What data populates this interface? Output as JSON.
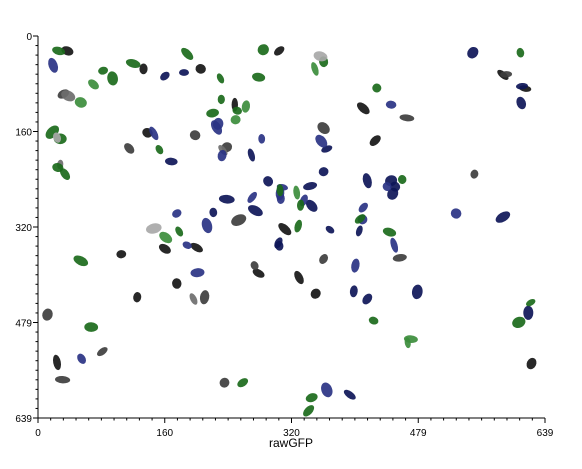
{
  "chart_data": {
    "type": "scatter",
    "title": "",
    "xlabel": "rawGFP",
    "ylabel": "",
    "xlim": [
      0,
      639
    ],
    "ylim": [
      0,
      639
    ],
    "y_inverted": true,
    "grid": false,
    "xticks": [
      "0",
      "160",
      "320",
      "479",
      "639"
    ],
    "yticks": [
      "0",
      "160",
      "320",
      "479",
      "639"
    ],
    "colors": {
      "black": "#161616",
      "darkgray": "#3e3e3e",
      "gray": "#6e6e6e",
      "navy": "#0e1658",
      "blue": "#2a3384",
      "green": "#1b6a1b",
      "lightgreen": "#3c8d3c",
      "silver": "#a8a8a8"
    },
    "series": [
      {
        "color": "black",
        "points": [
          [
            37,
            25
          ],
          [
            133,
            55
          ],
          [
            205,
            55
          ],
          [
            304,
            25
          ],
          [
            248,
            115
          ],
          [
            138,
            162
          ],
          [
            160,
            356
          ],
          [
            175,
            414
          ],
          [
            105,
            365
          ],
          [
            125,
            437
          ],
          [
            200,
            354
          ],
          [
            311,
            323
          ],
          [
            278,
            397
          ],
          [
            329,
            404
          ],
          [
            350,
            431
          ],
          [
            410,
            121
          ],
          [
            425,
            175
          ],
          [
            586,
            65
          ],
          [
            614,
            88
          ],
          [
            622,
            548
          ],
          [
            24,
            546
          ]
        ]
      },
      {
        "color": "darkgray",
        "points": [
          [
            32,
            97
          ],
          [
            115,
            188
          ],
          [
            198,
            166
          ],
          [
            238,
            186
          ],
          [
            253,
            308
          ],
          [
            210,
            437
          ],
          [
            273,
            384
          ],
          [
            360,
            373
          ],
          [
            456,
            371
          ],
          [
            550,
            231
          ],
          [
            590,
            64
          ],
          [
            12,
            466
          ],
          [
            81,
            528
          ],
          [
            31,
            575
          ],
          [
            235,
            580
          ],
          [
            360,
            154
          ],
          [
            465,
            137
          ]
        ]
      },
      {
        "color": "gray",
        "points": [
          [
            28,
            215
          ],
          [
            38,
            100
          ],
          [
            233,
            191
          ],
          [
            196,
            440
          ]
        ]
      },
      {
        "color": "navy",
        "points": [
          [
            160,
            67
          ],
          [
            184,
            61
          ],
          [
            269,
            199
          ],
          [
            304,
            351
          ],
          [
            360,
            227
          ],
          [
            343,
            251
          ],
          [
            345,
            284
          ],
          [
            364,
            189
          ],
          [
            368,
            324
          ],
          [
            405,
            326
          ],
          [
            398,
            427
          ],
          [
            415,
            242
          ],
          [
            450,
            252
          ],
          [
            447,
            264
          ],
          [
            445,
            242
          ],
          [
            415,
            440
          ],
          [
            478,
            428
          ],
          [
            586,
            303
          ],
          [
            610,
            84
          ],
          [
            609,
            112
          ],
          [
            618,
            463
          ],
          [
            548,
            28
          ],
          [
            221,
            295
          ],
          [
            274,
            292
          ],
          [
            393,
            600
          ],
          [
            168,
            210
          ],
          [
            238,
            273
          ],
          [
            303,
            346
          ],
          [
            290,
            243
          ]
        ]
      },
      {
        "color": "blue",
        "points": [
          [
            19,
            49
          ],
          [
            146,
            163
          ],
          [
            227,
            147
          ],
          [
            282,
            172
          ],
          [
            306,
            272
          ],
          [
            308,
            253
          ],
          [
            400,
            384
          ],
          [
            449,
            350
          ],
          [
            445,
            115
          ],
          [
            409,
            307
          ],
          [
            440,
            252
          ],
          [
            410,
            287
          ],
          [
            335,
            275
          ],
          [
            364,
            592
          ],
          [
            213,
            317
          ],
          [
            188,
            350
          ],
          [
            201,
            396
          ],
          [
            55,
            540
          ],
          [
            527,
            297
          ],
          [
            357,
            176
          ],
          [
            270,
            270
          ],
          [
            225,
            153
          ],
          [
            232,
            200
          ],
          [
            175,
            297
          ],
          [
            305,
            263
          ]
        ]
      },
      {
        "color": "green",
        "points": [
          [
            26,
            25
          ],
          [
            82,
            58
          ],
          [
            94,
            71
          ],
          [
            120,
            46
          ],
          [
            188,
            30
          ],
          [
            230,
            71
          ],
          [
            284,
            23
          ],
          [
            278,
            69
          ],
          [
            305,
            258
          ],
          [
            331,
            283
          ],
          [
            328,
            318
          ],
          [
            443,
            328
          ],
          [
            459,
            240
          ],
          [
            427,
            87
          ],
          [
            608,
            28
          ],
          [
            606,
            479
          ],
          [
            621,
            446
          ],
          [
            18,
            161
          ],
          [
            28,
            172
          ],
          [
            25,
            220
          ],
          [
            34,
            231
          ],
          [
            54,
            376
          ],
          [
            67,
            487
          ],
          [
            178,
            327
          ],
          [
            231,
            106
          ],
          [
            220,
            129
          ],
          [
            251,
            125
          ],
          [
            153,
            190
          ],
          [
            423,
            476
          ],
          [
            258,
            580
          ],
          [
            345,
            605
          ],
          [
            341,
            627
          ],
          [
            406,
            306
          ],
          [
            360,
            43
          ]
        ]
      },
      {
        "color": "lightgreen",
        "points": [
          [
            54,
            111
          ],
          [
            70,
            81
          ],
          [
            161,
            337
          ],
          [
            326,
            262
          ],
          [
            349,
            55
          ],
          [
            466,
            513
          ],
          [
            470,
            507
          ],
          [
            262,
            118
          ],
          [
            249,
            140
          ]
        ]
      },
      {
        "color": "silver",
        "points": [
          [
            356,
            34
          ],
          [
            146,
            322
          ],
          [
            24,
            170
          ]
        ]
      }
    ]
  }
}
